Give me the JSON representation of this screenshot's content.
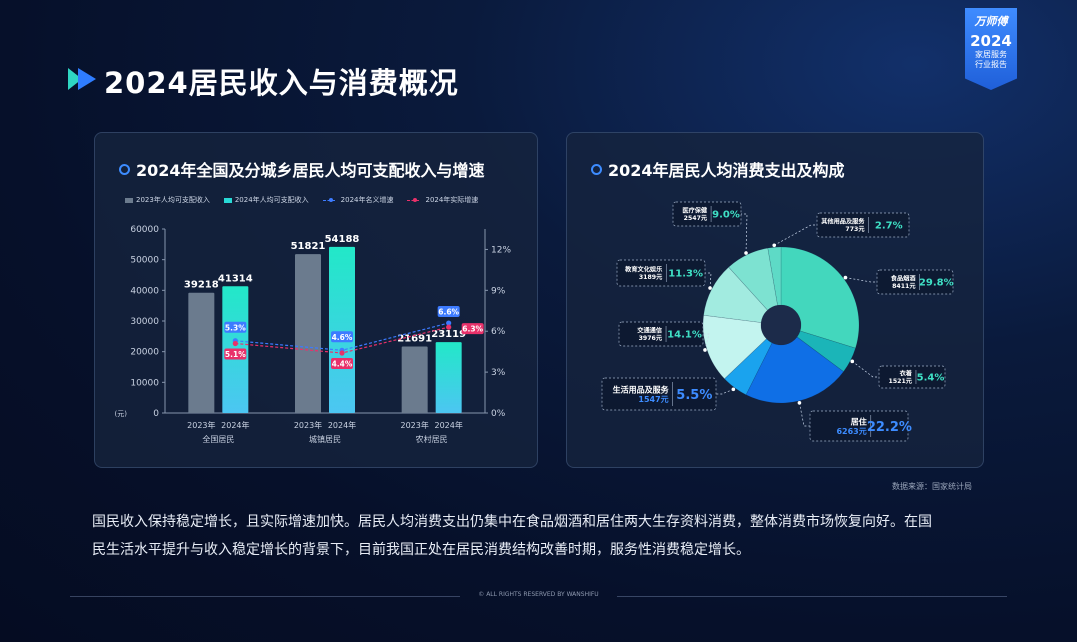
{
  "page": {
    "title": "2024居民收入与消费概况",
    "badge_brand": "万师傅",
    "badge_year": "2024",
    "badge_line1": "家居服务",
    "badge_line2": "行业报告",
    "source": "数据来源：国家统计局",
    "summary_line1": "国民收入保持稳定增长，且实际增速加快。居民人均消费支出仍集中在食品烟酒和居住两大生存资料消费，整体消费市场恢复向好。在国",
    "summary_line2": "民生活水平提升与收入稳定增长的背景下，目前我国正处在居民消费结构改善时期，服务性消费稳定增长。",
    "footer": "© ALL RIGHTS RESERVED BY WANSHIFU"
  },
  "colors": {
    "accent": "#3d8cff",
    "bar_2023": "#6b7b8e",
    "bar_2024_top": "#22e8c8",
    "bar_2024_bottom": "#4cc6f2",
    "nominal_line": "#3d7bff",
    "real_line": "#e8316a"
  },
  "chart_data": [
    {
      "type": "bar",
      "title": "2024年全国及分城乡居民人均可支配收入与增速",
      "categories": [
        "全国居民",
        "城镇居民",
        "农村居民"
      ],
      "sub_labels": [
        "2023年",
        "2024年"
      ],
      "ylabel": "(元)",
      "ylim": [
        0,
        60000
      ],
      "yticks": [
        "0",
        "10000",
        "20000",
        "30000",
        "40000",
        "50000",
        "60000"
      ],
      "y2lim": [
        0,
        13.5
      ],
      "y2ticks": [
        "0%",
        "3%",
        "6%",
        "9%",
        "12%"
      ],
      "grid": false,
      "legend_position": "top",
      "series": [
        {
          "name": "2023年人均可支配收入",
          "kind": "bar",
          "values": [
            39218,
            51821,
            21691
          ],
          "labels": [
            "39218",
            "51821",
            "21691"
          ]
        },
        {
          "name": "2024年人均可支配收入",
          "kind": "bar",
          "values": [
            41314,
            54188,
            23119
          ],
          "labels": [
            "41314",
            "54188",
            "23119"
          ]
        },
        {
          "name": "2024年名义增速",
          "kind": "line",
          "axis": "right",
          "values": [
            5.3,
            4.6,
            6.6
          ],
          "labels": [
            "5.3%",
            "4.6%",
            "6.6%"
          ]
        },
        {
          "name": "2024年实际增速",
          "kind": "line",
          "axis": "right",
          "values": [
            5.1,
            4.4,
            6.3
          ],
          "labels": [
            "5.1%",
            "4.4%",
            "6.3%"
          ]
        }
      ]
    },
    {
      "type": "pie",
      "title": "2024年居民人均消费支出及构成",
      "slices": [
        {
          "name": "食品烟酒",
          "amount": "8411元",
          "value": 29.8,
          "label": "29.8%",
          "color": "#43d7bd"
        },
        {
          "name": "衣着",
          "amount": "1521元",
          "value": 5.4,
          "label": "5.4%",
          "color": "#1bb5b8"
        },
        {
          "name": "居住",
          "amount": "6263元",
          "value": 22.2,
          "label": "22.2%",
          "color": "#0f6fe6"
        },
        {
          "name": "生活用品及服务",
          "amount": "1547元",
          "value": 5.5,
          "label": "5.5%",
          "color": "#1aa3ee"
        },
        {
          "name": "交通通信",
          "amount": "3976元",
          "value": 14.1,
          "label": "14.1%",
          "color": "#c3f4ef"
        },
        {
          "name": "教育文化娱乐",
          "amount": "3189元",
          "value": 11.3,
          "label": "11.3%",
          "color": "#a2ebe0"
        },
        {
          "name": "医疗保健",
          "amount": "2547元",
          "value": 9.0,
          "label": "9.0%",
          "color": "#7de2d1"
        },
        {
          "name": "其他用品及服务",
          "amount": "773元",
          "value": 2.7,
          "label": "2.7%",
          "color": "#5edac6"
        }
      ]
    }
  ]
}
